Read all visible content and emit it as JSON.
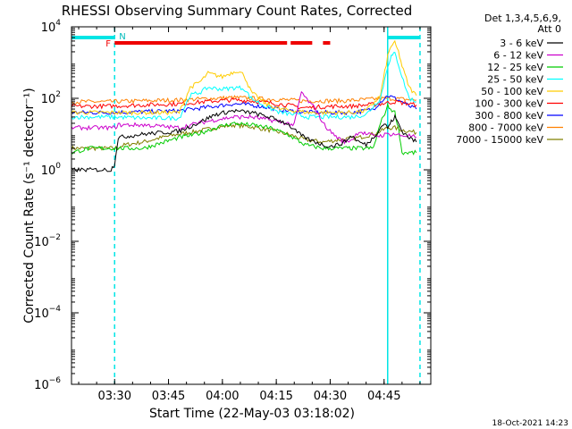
{
  "chart_data": {
    "type": "line",
    "title": "RHESSI Observing Summary Count Rates, Corrected",
    "xlabel": "Start Time (22-May-03 03:18:02)",
    "ylabel": "Corrected Count Rate (s⁻¹ detector⁻¹)",
    "yscale": "log",
    "ylim": [
      1e-06,
      10000
    ],
    "xlim_minutes": [
      0,
      100
    ],
    "x_ticks": [
      {
        "m": 12,
        "label": "03:30"
      },
      {
        "m": 27,
        "label": "03:45"
      },
      {
        "m": 42,
        "label": "04:00"
      },
      {
        "m": 57,
        "label": "04:15"
      },
      {
        "m": 72,
        "label": "04:30"
      },
      {
        "m": 87,
        "label": "04:45"
      }
    ],
    "y_ticks": [
      {
        "v": 1e-06,
        "base": "10",
        "exp": "−6"
      },
      {
        "v": 0.0001,
        "base": "10",
        "exp": "−4"
      },
      {
        "v": 0.01,
        "base": "10",
        "exp": "−2"
      },
      {
        "v": 1,
        "base": "10",
        "exp": "0"
      },
      {
        "v": 100,
        "base": "10",
        "exp": "2"
      },
      {
        "v": 10000,
        "base": "10",
        "exp": "4"
      }
    ],
    "legend_header": [
      "Det 1,3,4,5,6,9,",
      "Att 0"
    ],
    "legend_placement": "right",
    "markers": {
      "night_bars": [
        [
          0,
          12
        ],
        [
          88,
          97
        ]
      ],
      "night_label": "N",
      "flare_bars": [
        [
          12,
          60
        ],
        [
          61,
          67
        ],
        [
          70,
          72
        ]
      ],
      "flare_label": "F",
      "vlines_dashed": [
        12,
        97
      ],
      "vlines_solid": [
        88
      ]
    },
    "series": [
      {
        "name": "3 - 6 keV",
        "color": "#000000",
        "x": [
          0,
          10,
          11,
          12,
          13,
          20,
          30,
          35,
          40,
          45,
          50,
          55,
          60,
          62,
          64,
          66,
          68,
          70,
          72,
          74,
          76,
          78,
          80,
          82,
          84,
          86,
          87,
          88,
          89,
          90,
          91,
          92,
          94,
          96
        ],
        "y": [
          1,
          1,
          1,
          1.5,
          8,
          10,
          12,
          20,
          35,
          45,
          40,
          30,
          20,
          13,
          9,
          7,
          6,
          5,
          4.5,
          5,
          6,
          9,
          6,
          5,
          8,
          15,
          20,
          15,
          22,
          30,
          20,
          12,
          8,
          6
        ]
      },
      {
        "name": "6 - 12 keV",
        "color": "#cc00cc",
        "x": [
          0,
          12,
          13,
          20,
          30,
          35,
          40,
          45,
          50,
          55,
          60,
          62,
          64,
          66,
          68,
          70,
          72,
          74,
          76,
          78,
          80,
          82,
          84,
          86,
          88,
          90,
          92,
          94,
          96
        ],
        "y": [
          15,
          15,
          18,
          18,
          15,
          20,
          25,
          30,
          30,
          25,
          20,
          18,
          150,
          80,
          50,
          20,
          12,
          8,
          6,
          7,
          12,
          10,
          9,
          9,
          10,
          10,
          9,
          9,
          8
        ]
      },
      {
        "name": "12 - 25 keV",
        "color": "#00cc00",
        "x": [
          0,
          5,
          10,
          12,
          20,
          30,
          35,
          40,
          45,
          50,
          55,
          60,
          65,
          70,
          75,
          80,
          84,
          86,
          88,
          90,
          91,
          92,
          94,
          96
        ],
        "y": [
          3,
          4,
          4,
          4,
          4,
          8,
          10,
          15,
          20,
          18,
          15,
          10,
          5,
          4,
          4,
          4,
          4,
          20,
          60,
          40,
          15,
          3,
          3,
          3
        ]
      },
      {
        "name": "25 - 50 keV",
        "color": "#00ffff",
        "x": [
          0,
          10,
          12,
          20,
          30,
          33,
          36,
          38,
          42,
          46,
          48,
          50,
          54,
          58,
          62,
          66,
          70,
          74,
          78,
          82,
          86,
          88,
          89,
          90,
          91,
          92,
          94,
          96
        ],
        "y": [
          30,
          30,
          30,
          28,
          28,
          120,
          150,
          200,
          180,
          200,
          190,
          100,
          60,
          40,
          35,
          30,
          30,
          30,
          30,
          35,
          100,
          800,
          1500,
          1800,
          900,
          400,
          100,
          80
        ]
      },
      {
        "name": "50 - 100 keV",
        "color": "#ffcc00",
        "x": [
          0,
          10,
          12,
          20,
          30,
          33,
          36,
          38,
          42,
          46,
          48,
          50,
          54,
          58,
          62,
          66,
          70,
          74,
          78,
          82,
          86,
          88,
          89,
          90,
          91,
          92,
          94,
          96
        ],
        "y": [
          40,
          40,
          40,
          40,
          40,
          200,
          300,
          500,
          400,
          600,
          450,
          150,
          70,
          50,
          45,
          40,
          40,
          40,
          40,
          45,
          120,
          1500,
          3000,
          3500,
          2000,
          800,
          200,
          120
        ]
      },
      {
        "name": "100 - 300 keV",
        "color": "#ff0000",
        "x": [
          0,
          10,
          20,
          30,
          40,
          45,
          50,
          55,
          60,
          62,
          64,
          66,
          70,
          74,
          78,
          82,
          86,
          88,
          90,
          92,
          94,
          96
        ],
        "y": [
          60,
          60,
          65,
          70,
          85,
          90,
          85,
          75,
          65,
          60,
          55,
          55,
          58,
          60,
          60,
          65,
          70,
          75,
          80,
          75,
          70,
          65
        ]
      },
      {
        "name": "300 - 800 keV",
        "color": "#0000ff",
        "x": [
          0,
          10,
          20,
          30,
          40,
          45,
          50,
          55,
          60,
          64,
          68,
          72,
          76,
          80,
          84,
          86,
          88,
          90,
          92,
          94,
          96
        ],
        "y": [
          40,
          40,
          42,
          45,
          60,
          70,
          65,
          55,
          45,
          42,
          40,
          40,
          40,
          42,
          50,
          80,
          120,
          100,
          80,
          60,
          50
        ]
      },
      {
        "name": "800 - 7000 keV",
        "color": "#ff8000",
        "x": [
          0,
          10,
          20,
          30,
          40,
          45,
          50,
          55,
          60,
          64,
          68,
          72,
          76,
          80,
          84,
          88,
          92,
          96
        ],
        "y": [
          80,
          80,
          85,
          90,
          100,
          105,
          100,
          95,
          90,
          85,
          85,
          85,
          85,
          90,
          95,
          100,
          95,
          90
        ]
      },
      {
        "name": "7000 - 15000 keV",
        "color": "#808000",
        "x": [
          0,
          5,
          10,
          12,
          15,
          20,
          25,
          30,
          35,
          40,
          45,
          50,
          55,
          60,
          65,
          70,
          75,
          80,
          84,
          86,
          88,
          90,
          92,
          94,
          96
        ],
        "y": [
          4,
          4,
          4,
          4,
          5,
          6,
          8,
          10,
          12,
          15,
          18,
          16,
          13,
          10,
          7,
          6,
          7,
          8,
          10,
          12,
          15,
          15,
          13,
          12,
          11
        ]
      }
    ],
    "footer_timestamp": "18-Oct-2021 14:23"
  }
}
